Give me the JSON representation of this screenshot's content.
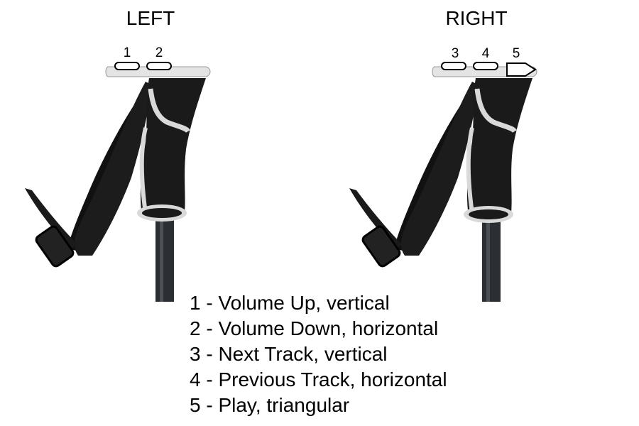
{
  "titles": {
    "left": "LEFT",
    "right": "RIGHT"
  },
  "buttons": {
    "left": [
      "1",
      "2"
    ],
    "right": [
      "3",
      "4",
      "5"
    ]
  },
  "legend": [
    "1 - Volume Up, vertical",
    "2 - Volume Down, horizontal",
    "3 - Next Track, vertical",
    "4 - Previous Track, horizontal",
    "5 - Play, triangular"
  ],
  "colors": {
    "grip": "#1a1a1a",
    "trim": "#d9d9d9",
    "cap": "#e4e4e4",
    "shaft": "#2b2f33",
    "strap": "#111111"
  }
}
